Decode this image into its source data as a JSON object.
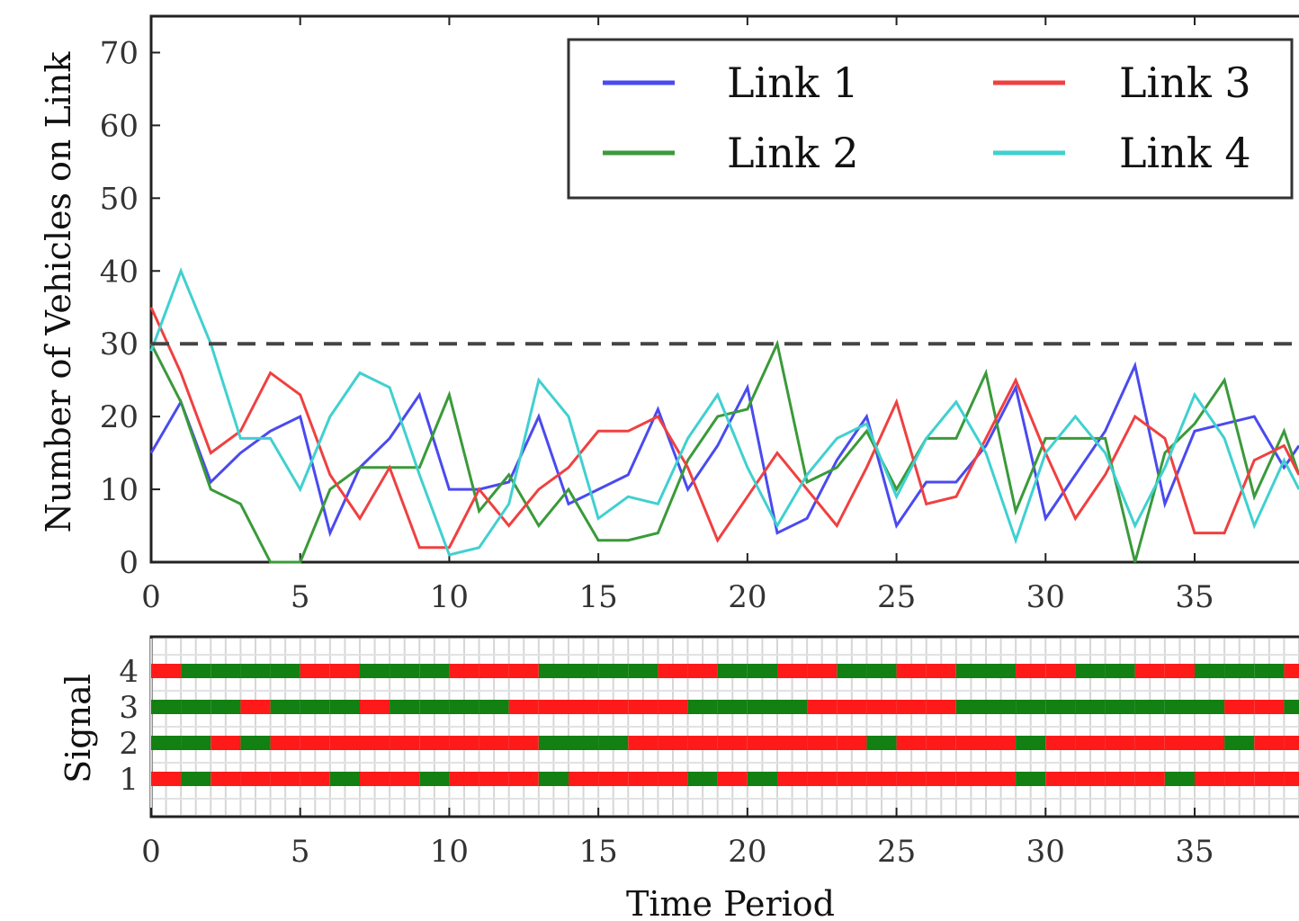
{
  "colors": {
    "link1": "#4a4af0",
    "link2": "#3a9a3a",
    "link3": "#f04040",
    "link4": "#40d0d0",
    "threshold": "#444444",
    "signal_red": "#ff1a1a",
    "signal_green": "#128012"
  },
  "chart_data": [
    {
      "type": "line",
      "xlabel": "",
      "ylabel": "Number of Vehicles on Link",
      "xlim": [
        0,
        38.5
      ],
      "ylim": [
        0,
        75
      ],
      "xticks": [
        "0",
        "5",
        "10",
        "15",
        "20",
        "25",
        "30",
        "35"
      ],
      "yticks": [
        "0",
        "10",
        "20",
        "30",
        "40",
        "50",
        "60",
        "70"
      ],
      "legend": "top-right, 2 columns",
      "threshold": 30,
      "x": [
        0,
        1,
        2,
        3,
        4,
        5,
        6,
        7,
        8,
        9,
        10,
        11,
        12,
        13,
        14,
        15,
        16,
        17,
        18,
        19,
        20,
        21,
        22,
        23,
        24,
        25,
        26,
        27,
        28,
        29,
        30,
        31,
        32,
        33,
        34,
        35,
        36,
        37,
        38,
        38.5
      ],
      "series": [
        {
          "name": "Link 1",
          "values": [
            15,
            22,
            11,
            15,
            18,
            20,
            4,
            13,
            17,
            23,
            10,
            10,
            11,
            20,
            8,
            10,
            12,
            21,
            10,
            16,
            24,
            4,
            6,
            14,
            20,
            5,
            11,
            11,
            16,
            24,
            6,
            12,
            18,
            27,
            8,
            18,
            19,
            20,
            13,
            16
          ]
        },
        {
          "name": "Link 2",
          "values": [
            30,
            22,
            10,
            8,
            0,
            0,
            10,
            13,
            13,
            13,
            23,
            7,
            12,
            5,
            10,
            3,
            3,
            4,
            14,
            20,
            21,
            30,
            11,
            13,
            18,
            10,
            17,
            17,
            26,
            7,
            17,
            17,
            17,
            0,
            15,
            19,
            25,
            9,
            18,
            12
          ]
        },
        {
          "name": "Link 3",
          "values": [
            35,
            26,
            15,
            18,
            26,
            23,
            12,
            6,
            13,
            2,
            2,
            10,
            5,
            10,
            13,
            18,
            18,
            20,
            13,
            3,
            9,
            15,
            10,
            5,
            13,
            22,
            8,
            9,
            17,
            25,
            15,
            6,
            12,
            20,
            17,
            4,
            4,
            14,
            16,
            12
          ]
        },
        {
          "name": "Link 4",
          "values": [
            29,
            40,
            30,
            17,
            17,
            10,
            20,
            26,
            24,
            12,
            1,
            2,
            8,
            25,
            20,
            6,
            9,
            8,
            17,
            23,
            13,
            5,
            12,
            17,
            19,
            9,
            17,
            22,
            15,
            3,
            15,
            20,
            15,
            5,
            13,
            23,
            17,
            5,
            14,
            10
          ]
        }
      ]
    },
    {
      "type": "heatmap",
      "xlabel": "Time Period",
      "ylabel": "Signal",
      "xlim": [
        0,
        38.5
      ],
      "xticks": [
        "0",
        "5",
        "10",
        "15",
        "20",
        "25",
        "30",
        "35"
      ],
      "yticks": [
        "1",
        "2",
        "3",
        "4"
      ],
      "legend": "none",
      "signals": [
        {
          "signal": "1",
          "states": "RGRRRRGRRGRRRGRRRRGRGRRRRRRRRGRRRRGRRRR"
        },
        {
          "signal": "2",
          "states": "GGRGRRRRRRRRRGGGRRRRRRRRGRRRRGRRRRRRGRR"
        },
        {
          "signal": "3",
          "states": "GGGRGGGRGGGGRRRRRRGGGGRRRRRGGGGGGGGGRRG"
        },
        {
          "signal": "4",
          "states": "RGGGGRRGGGRRRGGGGRRGGRRGGRRGGRRGGRRGGGR"
        }
      ]
    }
  ]
}
